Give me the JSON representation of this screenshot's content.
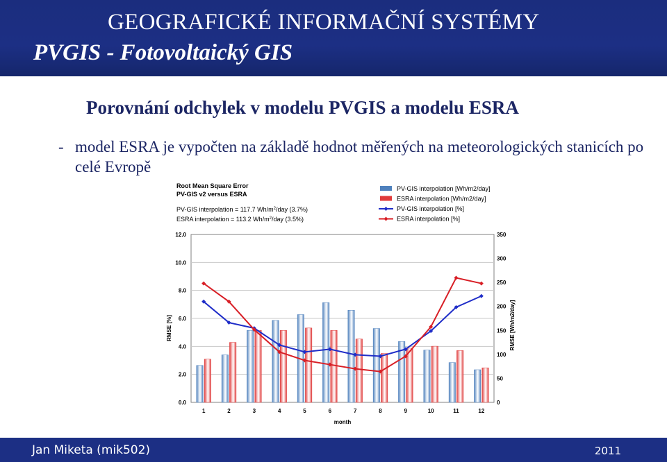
{
  "header": {
    "title": "GEOGRAFICKÉ INFORMAČNÍ SYSTÉMY",
    "subtitle": "PVGIS - Fotovoltaický GIS"
  },
  "slide": {
    "title": "Porovnání odchylek v modelu PVGIS a modelu ESRA",
    "bullet_dash": "-",
    "bullet_text": "model ESRA je vypočten na základě hodnot měřených na meteorologických stanicích po celé Evropě"
  },
  "footer": {
    "author": "Jan Miketa (mik502)",
    "year": "2011"
  },
  "chart_data": {
    "type": "bar",
    "title_lines": [
      "Root Mean Square Error",
      "PV-GIS v2 versus ESRA"
    ],
    "stats": [
      {
        "prefix": "PV-GIS interpolation = 117.7 Wh/m",
        "sup": "2",
        "suffix": "/day (3.7%)"
      },
      {
        "prefix": "ESRA interpolation = 113.2 Wh/m",
        "sup": "2",
        "suffix": "/day (3.5%)"
      }
    ],
    "xlabel": "month",
    "ylabel_left": "RMSE [%]",
    "ylabel_right": "RMSE [Wh/m2/day]",
    "categories": [
      "1",
      "2",
      "3",
      "4",
      "5",
      "6",
      "7",
      "8",
      "9",
      "10",
      "11",
      "12"
    ],
    "y_left_ticks": [
      "0.0",
      "2.0",
      "4.0",
      "6.0",
      "8.0",
      "10.0",
      "12.0"
    ],
    "y_left_range": [
      0,
      12
    ],
    "y_right_ticks": [
      "0",
      "50",
      "100",
      "150",
      "200",
      "250",
      "300",
      "350"
    ],
    "y_right_range": [
      0,
      350
    ],
    "legend_position": "top-right",
    "series": [
      {
        "name": "PV-GIS interpolation [Wh/m2/day]",
        "kind": "bar",
        "axis": "right",
        "color": "#4f81bd",
        "values": [
          77,
          99,
          150,
          171,
          183,
          208,
          192,
          154,
          127,
          109,
          83,
          68
        ]
      },
      {
        "name": "ESRA interpolation [Wh/m2/day]",
        "kind": "bar",
        "axis": "right",
        "color": "#e03a3a",
        "values": [
          90,
          125,
          150,
          150,
          155,
          150,
          132,
          102,
          113,
          117,
          108,
          72
        ]
      },
      {
        "name": "PV-GIS interpolation [%]",
        "kind": "line",
        "axis": "left",
        "color": "#1f2dc8",
        "values": [
          7.2,
          5.7,
          5.3,
          4.1,
          3.6,
          3.8,
          3.4,
          3.3,
          3.8,
          5.1,
          6.8,
          7.6
        ]
      },
      {
        "name": "ESRA interpolation [%]",
        "kind": "line",
        "axis": "left",
        "color": "#d81f26",
        "values": [
          8.5,
          7.2,
          5.2,
          3.6,
          3.0,
          2.7,
          2.4,
          2.2,
          3.3,
          5.4,
          8.9,
          8.5
        ]
      }
    ]
  }
}
